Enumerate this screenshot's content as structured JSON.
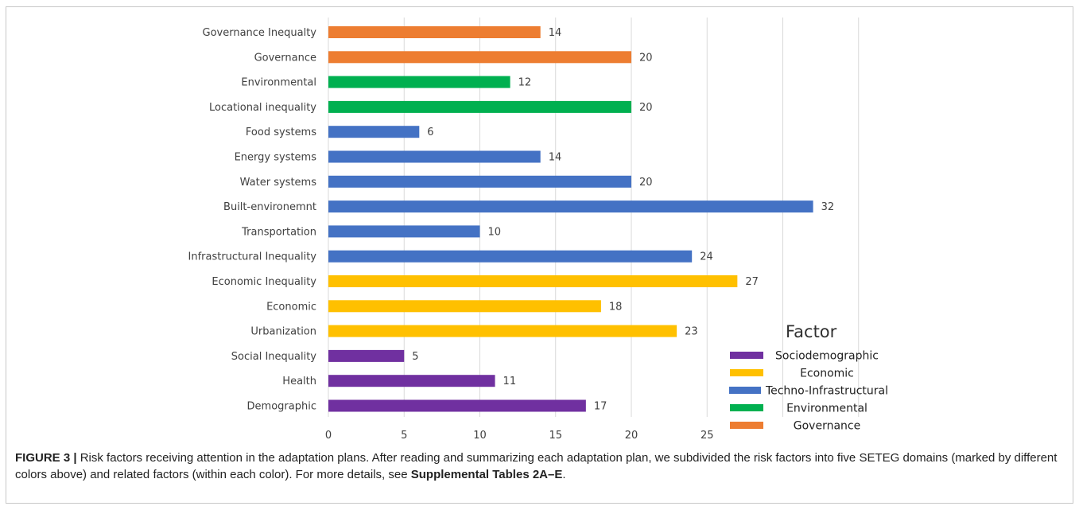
{
  "chart_data": {
    "type": "bar",
    "orientation": "horizontal",
    "categories": [
      "Governance Inequalty",
      "Governance",
      "Environmental",
      "Locational inequality",
      "Food systems",
      "Energy systems",
      "Water systems",
      "Built-environemnt",
      "Transportation",
      "Infrastructural Inequality",
      "Economic Inequality",
      "Economic",
      "Urbanization",
      "Social Inequality",
      "Health",
      "Demographic"
    ],
    "values": [
      14,
      20,
      12,
      20,
      6,
      14,
      20,
      32,
      10,
      24,
      27,
      18,
      23,
      5,
      11,
      17
    ],
    "factors": [
      "Governance",
      "Governance",
      "Environmental",
      "Environmental",
      "Techno-Infrastructural",
      "Techno-Infrastructural",
      "Techno-Infrastructural",
      "Techno-Infrastructural",
      "Techno-Infrastructural",
      "Techno-Infrastructural",
      "Economic",
      "Economic",
      "Economic",
      "Sociodemographic",
      "Sociodemographic",
      "Sociodemographic"
    ],
    "xticks": [
      0,
      5,
      10,
      15,
      20,
      25
    ],
    "xlim": [
      0,
      35
    ],
    "grid": "vertical",
    "legend": {
      "title": "Factor",
      "placement": "bottom-right",
      "items": [
        {
          "name": "Sociodemographic",
          "color": "#7030a0"
        },
        {
          "name": "Economic",
          "color": "#ffc000"
        },
        {
          "name": "Techno-Infrastructural",
          "color": "#4472c4"
        },
        {
          "name": "Environmental",
          "color": "#00b050"
        },
        {
          "name": "Governance",
          "color": "#ed7d31"
        }
      ]
    }
  },
  "caption": {
    "label": "FIGURE 3 |",
    "text": " Risk factors receiving attention in the adaptation plans. After reading and summarizing each adaptation plan, we subdivided the risk factors into five SETEG domains (marked by different colors above) and related factors (within each color). For more details, see ",
    "link": "Supplemental Tables 2A–E",
    "end": "."
  }
}
